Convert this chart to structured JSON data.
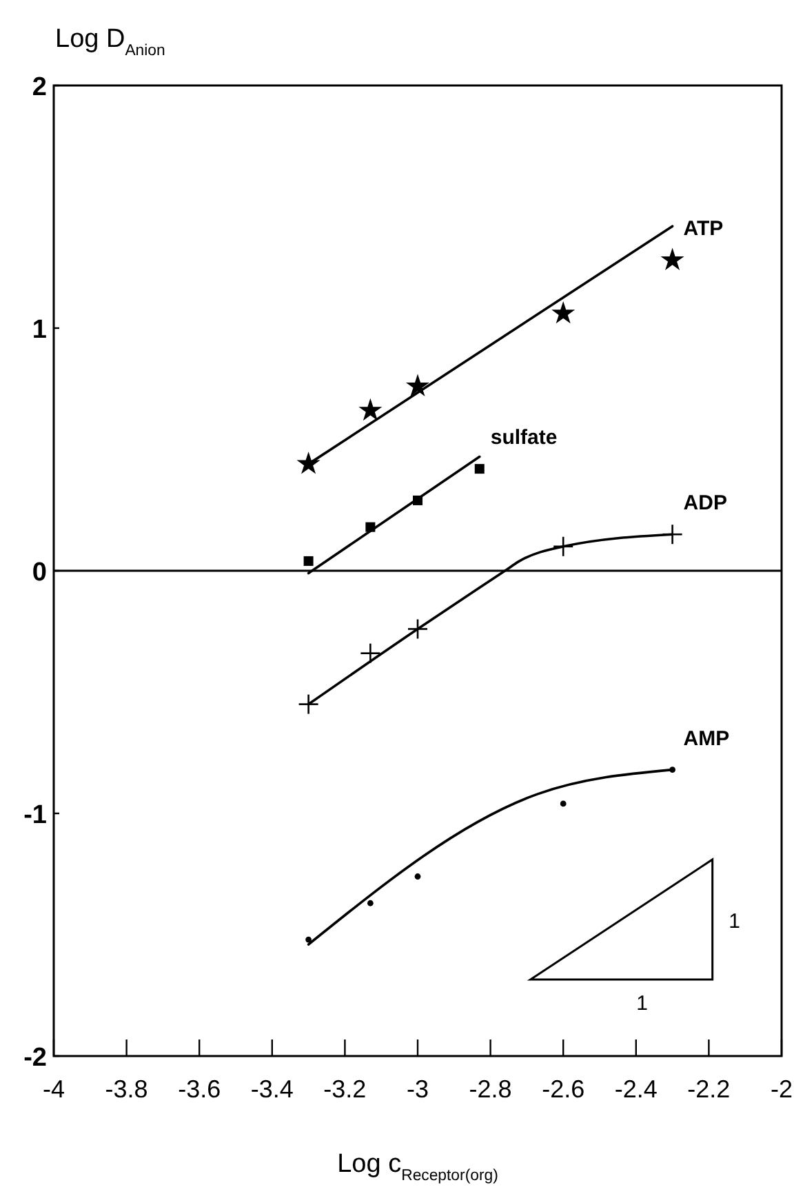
{
  "chart_data": {
    "type": "scatter",
    "xlabel": "Log c$_{Receptor(org)}$",
    "ylabel": "Log D$_{Anion}$",
    "xlim": [
      -4,
      -2
    ],
    "ylim": [
      -2,
      2
    ],
    "xticks": [
      -4,
      -3.8,
      -3.6,
      -3.4,
      -3.2,
      -3,
      -2.8,
      -2.6,
      -2.4,
      -2.2,
      -2
    ],
    "yticks": [
      -2,
      -1,
      0,
      1,
      2
    ],
    "grid": false,
    "ref_lines": [
      {
        "axis": "y",
        "value": 0
      }
    ],
    "annotations": [
      "1",
      "1"
    ],
    "series": [
      {
        "name": "ATP",
        "marker": "star",
        "color": "#000000",
        "x": [
          -3.3,
          -3.13,
          -3.0,
          -2.6,
          -2.3
        ],
        "values": [
          0.44,
          0.66,
          0.76,
          1.06,
          1.28
        ]
      },
      {
        "type": "line",
        "color": "#000000",
        "x": [
          -3.3,
          -2.3
        ],
        "values": [
          0.44,
          1.42
        ]
      },
      {
        "name": "sulfate",
        "marker": "square",
        "color": "#000000",
        "x": [
          -3.3,
          -3.13,
          -3.0,
          -2.83
        ],
        "values": [
          0.04,
          0.18,
          0.29,
          0.42
        ]
      },
      {
        "type": "line",
        "color": "#000000",
        "x": [
          -3.3,
          -2.83
        ],
        "values": [
          -0.01,
          0.47
        ]
      },
      {
        "name": "ADP",
        "marker": "cross",
        "color": "#000000",
        "x": [
          -3.3,
          -3.13,
          -3.0,
          -2.6,
          -2.3
        ],
        "values": [
          -0.55,
          -0.34,
          -0.24,
          0.1,
          0.15
        ]
      },
      {
        "type": "line",
        "color": "#000000",
        "x": [
          -3.3,
          -3.0,
          -2.76,
          -2.72,
          -2.6,
          -2.3
        ],
        "values": [
          -0.55,
          -0.24,
          0.0,
          0.04,
          0.1,
          0.15
        ]
      },
      {
        "name": "AMP",
        "marker": "circle",
        "color": "#000000",
        "x": [
          -3.3,
          -3.13,
          -3.0,
          -2.6,
          -2.3
        ],
        "values": [
          -1.52,
          -1.37,
          -1.26,
          -0.96,
          -0.82
        ]
      },
      {
        "type": "line",
        "color": "#000000",
        "x": [
          -3.3,
          -2.67,
          -2.3
        ],
        "values": [
          -1.54,
          -0.92,
          -0.82
        ]
      }
    ]
  }
}
